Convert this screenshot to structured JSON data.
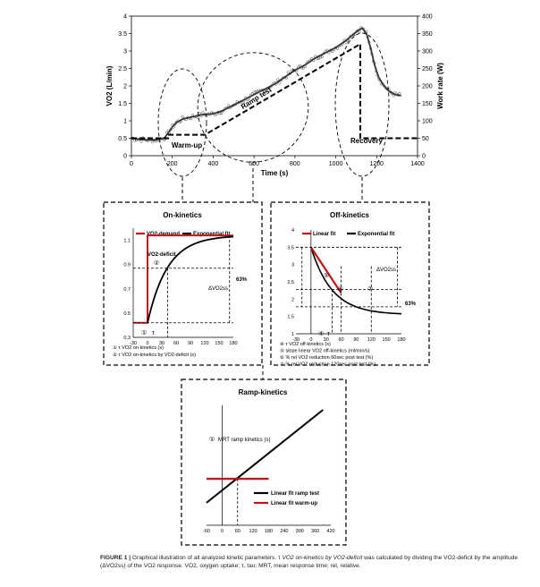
{
  "chart_data": [
    {
      "id": "main",
      "type": "line",
      "ylabel": "VO2 (L/min)",
      "y2label": "Work rate (W)",
      "xlabel": "Time (s)",
      "xlim": [
        0,
        1400
      ],
      "ylim": [
        0,
        4
      ],
      "y2lim": [
        0,
        400
      ],
      "x_ticks": [
        "0",
        "200",
        "400",
        "600",
        "800",
        "1000",
        "1200",
        "1400"
      ],
      "y_ticks": [
        "0",
        "0.5",
        "1",
        "1.5",
        "2",
        "2.5",
        "3",
        "3.5",
        "4"
      ],
      "y2_ticks": [
        "0",
        "50",
        "100",
        "150",
        "200",
        "250",
        "300",
        "350",
        "400"
      ],
      "annotations": [
        "Warm-up",
        "Ramp test",
        "Recovery"
      ],
      "series": [
        {
          "role": "vo2",
          "color": "#333333",
          "x": [
            0,
            40,
            80,
            120,
            160,
            180,
            200,
            220,
            250,
            300,
            350,
            400,
            450,
            500,
            550,
            600,
            650,
            700,
            750,
            800,
            850,
            900,
            950,
            1000,
            1050,
            1080,
            1110,
            1130,
            1150,
            1170,
            1190,
            1210,
            1230,
            1260,
            1290,
            1320
          ],
          "y": [
            0.5,
            0.47,
            0.45,
            0.45,
            0.5,
            0.65,
            0.82,
            0.95,
            1.05,
            1.12,
            1.18,
            1.2,
            1.3,
            1.45,
            1.6,
            1.75,
            1.9,
            2.05,
            2.25,
            2.45,
            2.6,
            2.8,
            2.95,
            3.1,
            3.3,
            3.45,
            3.6,
            3.65,
            3.5,
            3.1,
            2.6,
            2.25,
            2.05,
            1.85,
            1.75,
            1.72
          ]
        },
        {
          "role": "work-rate",
          "color": "#000000",
          "x": [
            0,
            180,
            180,
            360,
            1120,
            1120,
            1400
          ],
          "y": [
            50,
            50,
            60,
            60,
            320,
            50,
            50
          ]
        }
      ]
    },
    {
      "id": "on",
      "type": "line",
      "title": "On-kinetics",
      "xlim": [
        -30,
        180
      ],
      "ylim": [
        0.3,
        1.2
      ],
      "x_ticks": [
        "-30",
        "0",
        "30",
        "60",
        "90",
        "120",
        "150",
        "180"
      ],
      "y_ticks": [
        "0.3",
        "0.5",
        "0.7",
        "0.9",
        "1.1"
      ],
      "legend": [
        "VO2-demand",
        "Exponential fit"
      ],
      "labels": [
        "VO2-deficit",
        "②",
        "63%",
        "ΔVO2ss",
        "①",
        "τ"
      ],
      "notes": [
        "① τ VO2 on-kinetics (s)",
        "② τ VO2 on-kinetics by VO2-deficit (s)"
      ],
      "exp_fit": {
        "baseline": 0.42,
        "amplitude": 0.72,
        "tau": 42
      },
      "demand": {
        "x": [
          -30,
          0,
          0,
          180
        ],
        "y": [
          0.42,
          0.42,
          1.14,
          1.14
        ],
        "color": "#c0151b"
      },
      "lines": {
        "level_63": 0.87,
        "level_low": 0.42,
        "tau_x": 42
      }
    },
    {
      "id": "off",
      "type": "line",
      "title": "Off-kinetics",
      "xlim": [
        -30,
        180
      ],
      "ylim": [
        1,
        4
      ],
      "x_ticks": [
        "-30",
        "0",
        "30",
        "60",
        "90",
        "120",
        "150",
        "180"
      ],
      "y_ticks": [
        "1",
        "1.5",
        "2",
        "2.5",
        "3",
        "3.5",
        "4"
      ],
      "legend": [
        "Linear fit",
        "Exponential fit"
      ],
      "labels": [
        "⑤",
        "⑥",
        "⑦",
        "63%",
        "ΔVO2ss",
        "④",
        "τ"
      ],
      "notes": [
        "④ τ VO2 off-kinetics (s)",
        "⑤ slope linear VO2 off-kinetics (ml/min/s)",
        "⑥ % rel VO2 reduction 60sec post test (%)",
        "⑦ % rel VO2 reduction 120sec post test (%)"
      ],
      "exp_fit": {
        "end": 1.55,
        "amplitude": 1.95,
        "tau": 42
      },
      "linear_fit": {
        "x": [
          0,
          60
        ],
        "y": [
          3.5,
          2.18
        ],
        "color": "#c0151b"
      },
      "lines": {
        "level_top": 3.5,
        "level_63": 2.28,
        "level_bottom": 1.78,
        "x_60": 60,
        "x_120": 120,
        "tau_x": 42
      }
    },
    {
      "id": "ramp",
      "type": "line",
      "title": "Ramp-kinetics",
      "xlim": [
        -60,
        420
      ],
      "ylim": [
        0,
        4
      ],
      "x_ticks": [
        "-60",
        "0",
        "60",
        "120",
        "180",
        "240",
        "300",
        "360",
        "420"
      ],
      "labels": [
        "①",
        "MRT ramp kinetics (s)"
      ],
      "legend": [
        "Linear fit ramp test",
        "Linear fit warm-up"
      ],
      "ramp_line": {
        "x": [
          -60,
          390
        ],
        "y": [
          0.75,
          3.85
        ],
        "color": "#000000"
      },
      "warmup_line": {
        "x": [
          -60,
          180
        ],
        "y": [
          1.55,
          1.55
        ],
        "color": "#c0151b"
      },
      "mrt_x": 60
    }
  ],
  "caption": {
    "fig_label": "FIGURE 1 |",
    "part1": " Graphical illustration of all analyzed kinetic parameters. τ ",
    "italic1": "VO2 on-kinetics by VO2-deficit",
    "part2": " was calculated by dividing the VO2-deficit by the amplitude (ΔVO2ss) of the VO2 response. VO2, oxygen uptake; τ, tau; MRT, mean response time; rel, relative."
  }
}
